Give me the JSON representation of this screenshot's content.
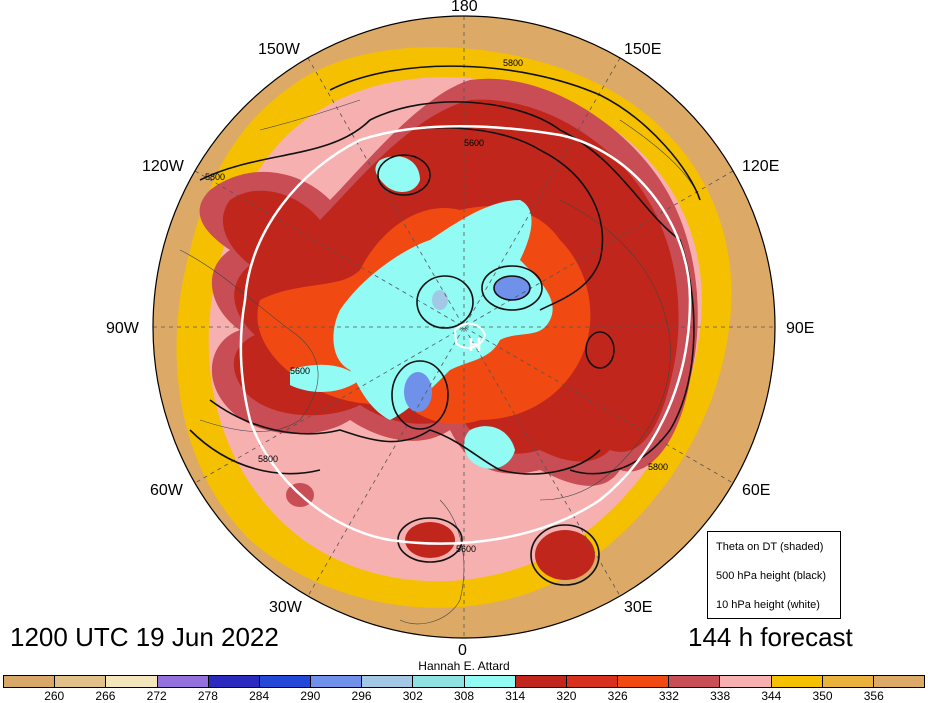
{
  "map": {
    "center_marker": "H",
    "lon_labels": {
      "n180": "180",
      "e150": "150E",
      "e120": "120E",
      "e90": "90E",
      "e60": "60E",
      "e30": "30E",
      "n0": "0",
      "w30": "30W",
      "w60": "60W",
      "w90": "90W",
      "w120": "120W",
      "w150": "150W"
    },
    "contour_labels": [
      "5800",
      "5600",
      "5800",
      "5600",
      "5800",
      "5800",
      "5600"
    ]
  },
  "valid_time": "1200 UTC 19 Jun 2022",
  "forecast_lead": "144 h forecast",
  "credit": "Hannah E. Attard",
  "legend": {
    "theta": "Theta on DT (shaded)",
    "z500": "500 hPa height (black)",
    "z10": "10 hPa height (white)"
  },
  "colorbar": {
    "colors": [
      "#d8a868",
      "#e2c08a",
      "#f3e6bb",
      "#9370db",
      "#2a2abf",
      "#2348d8",
      "#6f91ea",
      "#a2c8e6",
      "#8ee2e2",
      "#91fbf4",
      "#c0261c",
      "#d8301e",
      "#f04a12",
      "#c84d55",
      "#f7b0b0",
      "#f5c000",
      "#e8b23c",
      "#dcaa66"
    ],
    "ticks": [
      "260",
      "266",
      "272",
      "278",
      "284",
      "290",
      "296",
      "302",
      "308",
      "314",
      "320",
      "326",
      "332",
      "338",
      "344",
      "350",
      "356"
    ]
  }
}
